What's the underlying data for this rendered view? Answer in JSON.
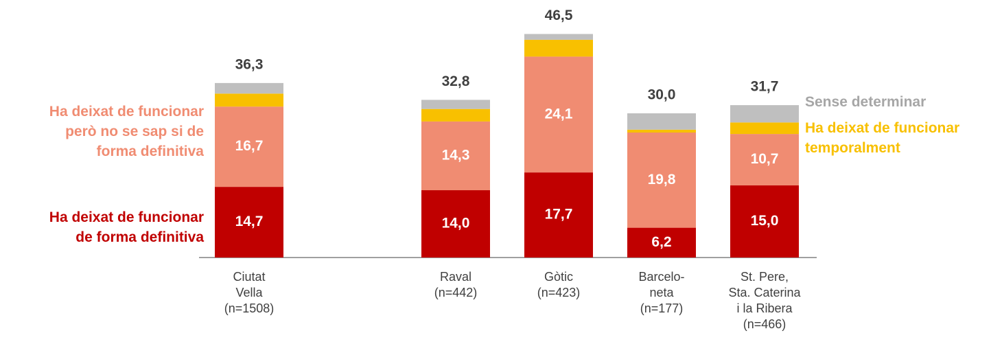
{
  "chart_data": {
    "type": "stacked_bar",
    "categories": [
      "Ciutat\nVella\n(n=1508)",
      "Raval\n(n=442)",
      "Gòtic\n(n=423)",
      "Barcelo-\nneta\n(n=177)",
      "St. Pere,\nSta. Caterina\ni la Ribera\n(n=466)"
    ],
    "ylim": [
      0,
      50
    ],
    "series": [
      {
        "name": "Ha deixat de funcionar\nde forma definitiva",
        "color": "#c00000",
        "legend": "left",
        "values": [
          14.7,
          14.0,
          17.7,
          6.2,
          15.0
        ],
        "value_labels": [
          "14,7",
          "14,0",
          "17,7",
          "6,2",
          "15,0"
        ]
      },
      {
        "name": "Ha deixat de funcionar\nperò no se sap si de\nforma definitiva",
        "color": "#f08c72",
        "legend": "left",
        "values": [
          16.7,
          14.3,
          24.1,
          19.8,
          10.7
        ],
        "value_labels": [
          "16,7",
          "14,3",
          "24,1",
          "19,8",
          "10,7"
        ]
      },
      {
        "name": "Ha deixat de funcionar\ntemporalment",
        "color": "#f8c000",
        "legend": "right",
        "values": [
          2.7,
          2.6,
          3.5,
          0.6,
          2.4
        ]
      },
      {
        "name": "Sense determinar",
        "color": "#bfbfbf",
        "text_color": "#a6a6a6",
        "legend": "right",
        "values": [
          2.2,
          1.9,
          1.2,
          3.4,
          3.6
        ]
      }
    ],
    "totals": [
      36.3,
      32.8,
      46.5,
      30.0,
      31.7
    ],
    "total_labels": [
      "36,3",
      "32,8",
      "46,5",
      "30,0",
      "31,7"
    ]
  }
}
